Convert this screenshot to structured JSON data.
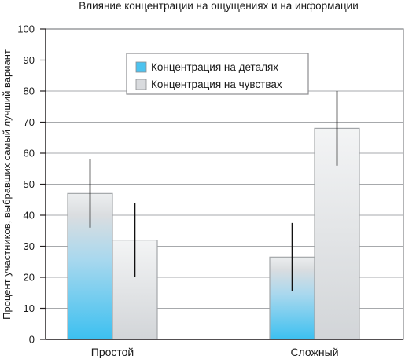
{
  "chart_data": {
    "type": "bar",
    "title": "Влияние концентрации на ощущениях и на информации",
    "xlabel": "",
    "ylabel": "Процент участников, выбравших самый лучший вариант",
    "ylim": [
      0,
      100
    ],
    "yticks": [
      "0",
      "10",
      "20",
      "30",
      "40",
      "50",
      "60",
      "70",
      "80",
      "90",
      "100"
    ],
    "categories": [
      "Простой",
      "Сложный"
    ],
    "grid": true,
    "legend_position": "top-center",
    "series": [
      {
        "name": "Концентрация на деталях",
        "values": [
          47,
          26.5
        ],
        "error_low": [
          36,
          15.5
        ],
        "error_high": [
          58,
          37.5
        ],
        "color": "#4dc3ef"
      },
      {
        "name": "Концентрация на чувствах",
        "values": [
          32,
          68
        ],
        "error_low": [
          20,
          56
        ],
        "error_high": [
          44,
          80
        ],
        "color": "#d6d9dc"
      }
    ]
  }
}
